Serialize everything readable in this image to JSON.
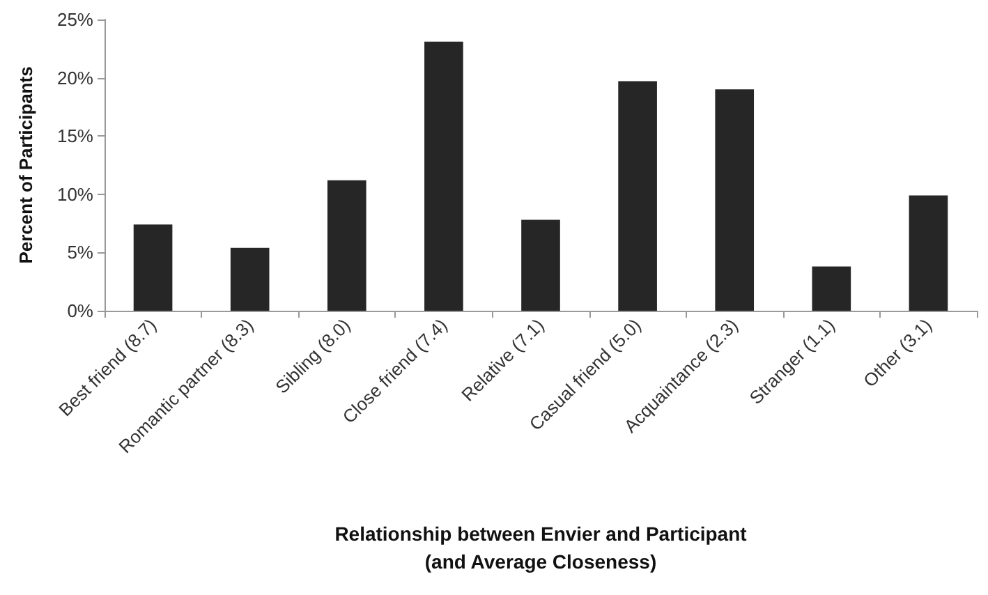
{
  "chart_data": {
    "type": "bar",
    "xlabel": "Relationship between Envier and Participant\n(and Average Closeness)",
    "ylabel": "Percent of Participants",
    "categories": [
      "Best friend (8.7)",
      "Romantic partner (8.3)",
      "Sibling (8.0)",
      "Close friend (7.4)",
      "Relative (7.1)",
      "Casual friend (5.0)",
      "Acquaintance (2.3)",
      "Stranger (1.1)",
      "Other (3.1)"
    ],
    "values": [
      7.4,
      5.4,
      11.2,
      23.1,
      7.8,
      19.7,
      19.0,
      3.8,
      9.9
    ],
    "color": "#262626",
    "ylim": [
      0,
      25
    ],
    "yticks": [
      {
        "value": 0,
        "label": "0%"
      },
      {
        "value": 5,
        "label": "5%"
      },
      {
        "value": 10,
        "label": "10%"
      },
      {
        "value": 15,
        "label": "15%"
      },
      {
        "value": 20,
        "label": "20%"
      },
      {
        "value": 25,
        "label": "25%"
      }
    ],
    "grid": false
  }
}
